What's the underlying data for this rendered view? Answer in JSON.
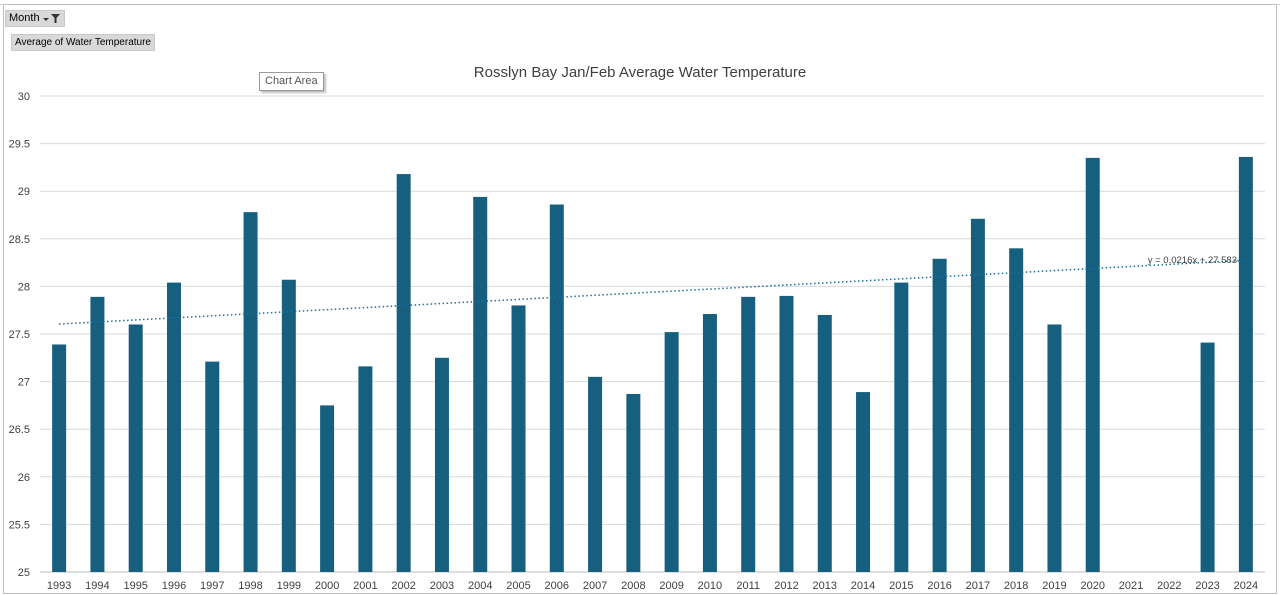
{
  "filters": {
    "month_label": "Month",
    "value_label": "Average of Water Temperature"
  },
  "tooltip": {
    "label": "Chart Area"
  },
  "chart_data": {
    "type": "bar",
    "title": "Rosslyn Bay Jan/Feb Average Water Temperature",
    "xlabel": "",
    "ylabel": "",
    "ylim": [
      25,
      30
    ],
    "yticks": [
      25,
      25.5,
      26,
      26.5,
      27,
      27.5,
      28,
      28.5,
      29,
      29.5,
      30
    ],
    "grid": true,
    "bar_color": "#165f7f",
    "categories": [
      "1993",
      "1994",
      "1995",
      "1996",
      "1997",
      "1998",
      "1999",
      "2000",
      "2001",
      "2002",
      "2003",
      "2004",
      "2005",
      "2006",
      "2007",
      "2008",
      "2009",
      "2010",
      "2011",
      "2012",
      "2013",
      "2014",
      "2015",
      "2016",
      "2017",
      "2018",
      "2019",
      "2020",
      "2021",
      "2022",
      "2023",
      "2024"
    ],
    "values": [
      27.39,
      27.89,
      27.6,
      28.04,
      27.21,
      28.78,
      28.07,
      26.75,
      27.16,
      29.18,
      27.25,
      28.94,
      27.8,
      28.86,
      27.05,
      26.87,
      27.52,
      27.71,
      27.89,
      27.9,
      27.7,
      26.89,
      28.04,
      28.29,
      28.71,
      28.4,
      27.6,
      29.35,
      null,
      null,
      27.41,
      29.36
    ],
    "trendline": {
      "type": "linear",
      "slope": 0.0216,
      "intercept": 27.583,
      "label": "y = 0.0216x + 27.583",
      "color": "#1f6f9a"
    }
  }
}
